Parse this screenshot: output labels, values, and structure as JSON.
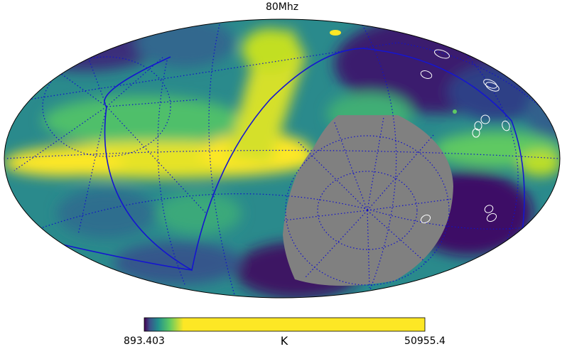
{
  "title": "80Mhz",
  "colorbar": {
    "min": "893.403",
    "max": "50955.4",
    "unit": "K"
  }
}
